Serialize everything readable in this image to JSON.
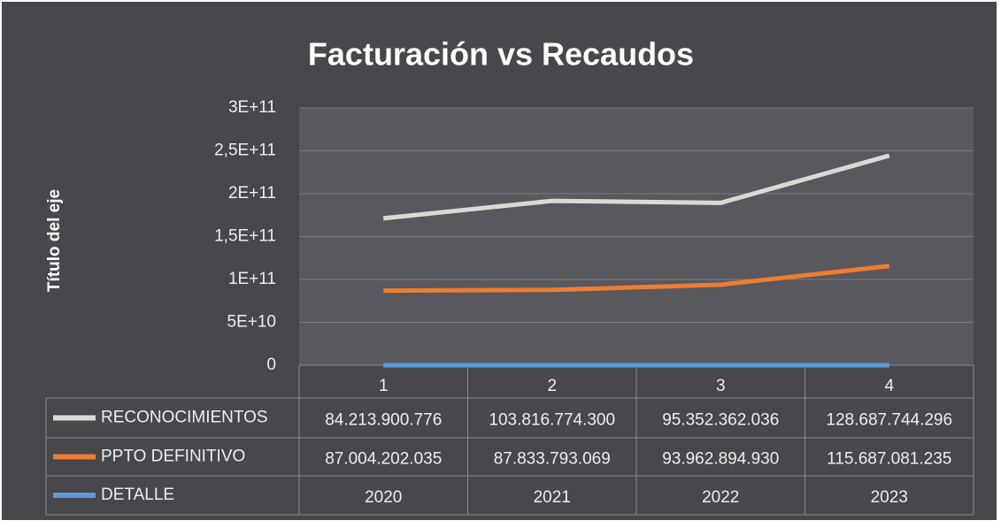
{
  "chart_data": {
    "type": "stacked-line",
    "title": "Facturación vs Recaudos",
    "y_label": "Título del eje",
    "categories": [
      "1",
      "2",
      "3",
      "4"
    ],
    "series": [
      {
        "name": "RECONOCIMIENTOS",
        "color": "#d9d9d9",
        "values": [
          84213900776,
          103816774300,
          95352362036,
          128687744296
        ],
        "value_labels": [
          "84.213.900.776",
          "103.816.774.300",
          "95.352.362.036",
          "128.687.744.296"
        ]
      },
      {
        "name": "PPTO DEFINITIVO",
        "color": "#ed7d31",
        "values": [
          87004202035,
          87833793069,
          93962894930,
          115687081235
        ],
        "value_labels": [
          "87.004.202.035",
          "87.833.793.069",
          "93.962.894.930",
          "115.687.081.235"
        ]
      },
      {
        "name": "DETALLE",
        "color": "#5b9bd5",
        "values": [
          2020,
          2021,
          2022,
          2023
        ]
      }
    ],
    "stack_order": "bottom-up from last series",
    "ylim": [
      0,
      300000000000
    ],
    "yticks": [
      0,
      {
        "value": 50000000000,
        "label": "5E+10"
      },
      {
        "value": 100000000000,
        "label": "1E+11"
      },
      {
        "value": 150000000000,
        "label": "1,5E+11"
      },
      {
        "value": 200000000000,
        "label": "2E+11"
      },
      {
        "value": 250000000000,
        "label": "2,5E+11"
      },
      {
        "value": 300000000000,
        "label": "3E+11"
      }
    ],
    "grid": true,
    "data_table": true
  }
}
